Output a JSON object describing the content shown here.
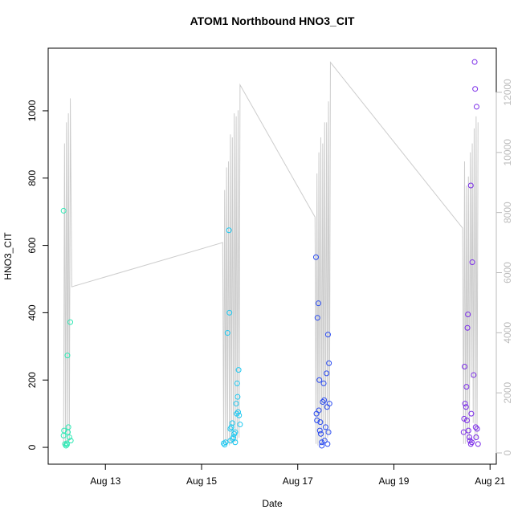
{
  "chart_data": {
    "type": "scatter",
    "title": "ATOM1 Northbound HNO3_CIT",
    "x_label": "Date",
    "y_label": "HNO3_CIT",
    "xlim": [
      11.81,
      21.13
    ],
    "ylim": [
      -50,
      1186
    ],
    "y2lim": [
      -374,
      13469
    ],
    "xticks": [
      {
        "value": 13,
        "label": "Aug 13"
      },
      {
        "value": 15,
        "label": "Aug 15"
      },
      {
        "value": 17,
        "label": "Aug 17"
      },
      {
        "value": 19,
        "label": "Aug 19"
      },
      {
        "value": 21,
        "label": "Aug 21"
      }
    ],
    "yticks": [
      0,
      200,
      400,
      600,
      800,
      1000
    ],
    "y2ticks": [
      0,
      2000,
      4000,
      6000,
      8000,
      10000,
      12000
    ],
    "series": [
      {
        "color": "#cccccc",
        "type": "line",
        "axis": "y2",
        "x": [
          12.13,
          12.15,
          12.17,
          12.19,
          12.21,
          12.23,
          12.25,
          12.27,
          12.3,
          15.44,
          15.46,
          15.48,
          15.5,
          15.52,
          15.54,
          15.56,
          15.58,
          15.6,
          15.62,
          15.64,
          15.66,
          15.68,
          15.7,
          15.72,
          15.74,
          15.76,
          15.78,
          15.8,
          17.36,
          17.38,
          17.4,
          17.42,
          17.44,
          17.46,
          17.48,
          17.5,
          17.52,
          17.54,
          17.56,
          17.58,
          17.6,
          17.62,
          17.64,
          17.66,
          17.68,
          20.43,
          20.45,
          20.47,
          20.49,
          20.51,
          20.53,
          20.55,
          20.57,
          20.59,
          20.61,
          20.63,
          20.65,
          20.67,
          20.69,
          20.71,
          20.73,
          20.75
        ],
        "values": [
          240,
          10300,
          300,
          11000,
          350,
          11300,
          400,
          11800,
          5530,
          7000,
          300,
          8750,
          250,
          9500,
          300,
          9700,
          250,
          10600,
          300,
          10500,
          280,
          11300,
          350,
          11200,
          400,
          11400,
          500,
          12250,
          7850,
          300,
          9300,
          250,
          10000,
          300,
          10500,
          280,
          10300,
          350,
          11000,
          400,
          11000,
          500,
          11700,
          600,
          13000,
          7480,
          300,
          9700,
          300,
          8900,
          500,
          9200,
          350,
          10000,
          2500,
          10300,
          1000,
          10800,
          400,
          11200,
          500,
          11000
        ]
      },
      {
        "color": "#2ee8b4",
        "type": "scatter",
        "x": [
          12.13,
          12.14,
          12.13,
          12.16,
          12.18,
          12.2,
          12.21,
          12.23,
          12.22,
          12.25,
          12.27,
          12.28,
          12.2
        ],
        "values": [
          703,
          50,
          35,
          10,
          5,
          12,
          273,
          60,
          45,
          30,
          372,
          20,
          8
        ]
      },
      {
        "color": "#1ec8f0",
        "type": "scatter",
        "x": [
          15.46,
          15.48,
          15.5,
          15.54,
          15.57,
          15.58,
          15.6,
          15.62,
          15.6,
          15.64,
          15.66,
          15.68,
          15.7,
          15.72,
          15.73,
          15.74,
          15.75,
          15.77,
          15.76,
          15.78,
          15.8,
          15.65,
          15.7
        ],
        "values": [
          12,
          8,
          15,
          340,
          645,
          400,
          55,
          60,
          20,
          72,
          30,
          40,
          15,
          130,
          100,
          190,
          150,
          230,
          105,
          95,
          68,
          25,
          45
        ]
      },
      {
        "color": "#2a4bf0",
        "type": "scatter",
        "x": [
          17.38,
          17.39,
          17.4,
          17.41,
          17.43,
          17.44,
          17.45,
          17.46,
          17.47,
          17.48,
          17.5,
          17.52,
          17.54,
          17.55,
          17.56,
          17.5,
          17.58,
          17.6,
          17.61,
          17.63,
          17.65,
          17.66,
          17.64,
          17.62
        ],
        "values": [
          565,
          100,
          80,
          385,
          428,
          110,
          200,
          50,
          75,
          40,
          15,
          135,
          190,
          140,
          20,
          5,
          60,
          220,
          120,
          335,
          250,
          130,
          45,
          10
        ]
      },
      {
        "color": "#7a2be8",
        "type": "scatter",
        "x": [
          20.47,
          20.46,
          20.45,
          20.48,
          20.5,
          20.51,
          20.52,
          20.53,
          20.54,
          20.55,
          20.57,
          20.58,
          20.6,
          20.61,
          20.63,
          20.62,
          20.6,
          20.66,
          20.68,
          20.69,
          20.72,
          20.7,
          20.71,
          20.73,
          20.75
        ],
        "values": [
          240,
          85,
          45,
          130,
          120,
          180,
          80,
          355,
          395,
          50,
          30,
          20,
          778,
          100,
          550,
          15,
          10,
          215,
          1145,
          1065,
          1012,
          60,
          30,
          55,
          10
        ]
      }
    ]
  }
}
